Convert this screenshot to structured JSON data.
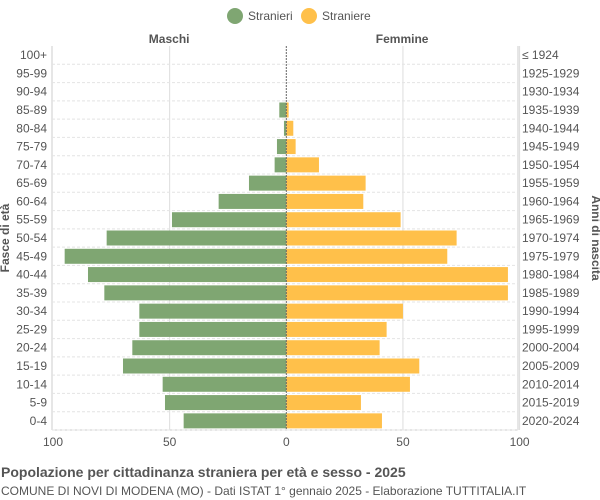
{
  "chart_data": {
    "type": "bar",
    "orientation": "horizontal-pyramid",
    "title": "Popolazione per cittadinanza straniera per età e sesso - 2025",
    "subtitle": "COMUNE DI NOVI DI MODENA (MO) - Dati ISTAT 1° gennaio 2025 - Elaborazione TUTTITALIA.IT",
    "left_header": "Maschi",
    "right_header": "Femmine",
    "ylabel_left": "Fasce di età",
    "ylabel_right": "Anni di nascita",
    "legend": {
      "position": "top",
      "items": [
        {
          "name": "Stranieri",
          "color": "#7fa672"
        },
        {
          "name": "Straniere",
          "color": "#ffc04a"
        }
      ]
    },
    "categories": [
      "100+",
      "95-99",
      "90-94",
      "85-89",
      "80-84",
      "75-79",
      "70-74",
      "65-69",
      "60-64",
      "55-59",
      "50-54",
      "45-49",
      "40-44",
      "35-39",
      "30-34",
      "25-29",
      "20-24",
      "15-19",
      "10-14",
      "5-9",
      "0-4"
    ],
    "birth_years": [
      "≤ 1924",
      "1925-1929",
      "1930-1934",
      "1935-1939",
      "1940-1944",
      "1945-1949",
      "1950-1954",
      "1955-1959",
      "1960-1964",
      "1965-1969",
      "1970-1974",
      "1975-1979",
      "1980-1984",
      "1985-1989",
      "1990-1994",
      "1995-1999",
      "2000-2004",
      "2005-2009",
      "2010-2014",
      "2015-2019",
      "2020-2024"
    ],
    "series": [
      {
        "name": "Stranieri",
        "values": [
          0,
          0,
          0,
          3,
          1,
          4,
          5,
          16,
          29,
          49,
          77,
          95,
          85,
          78,
          63,
          63,
          66,
          70,
          53,
          52,
          44
        ]
      },
      {
        "name": "Straniere",
        "values": [
          0,
          0,
          0,
          1,
          3,
          4,
          14,
          34,
          33,
          49,
          73,
          69,
          95,
          95,
          50,
          43,
          40,
          57,
          53,
          32,
          41
        ]
      }
    ],
    "xlim": [
      -100,
      100
    ],
    "xticks": [
      "100",
      "50",
      "0",
      "50",
      "100"
    ],
    "grid": true
  }
}
